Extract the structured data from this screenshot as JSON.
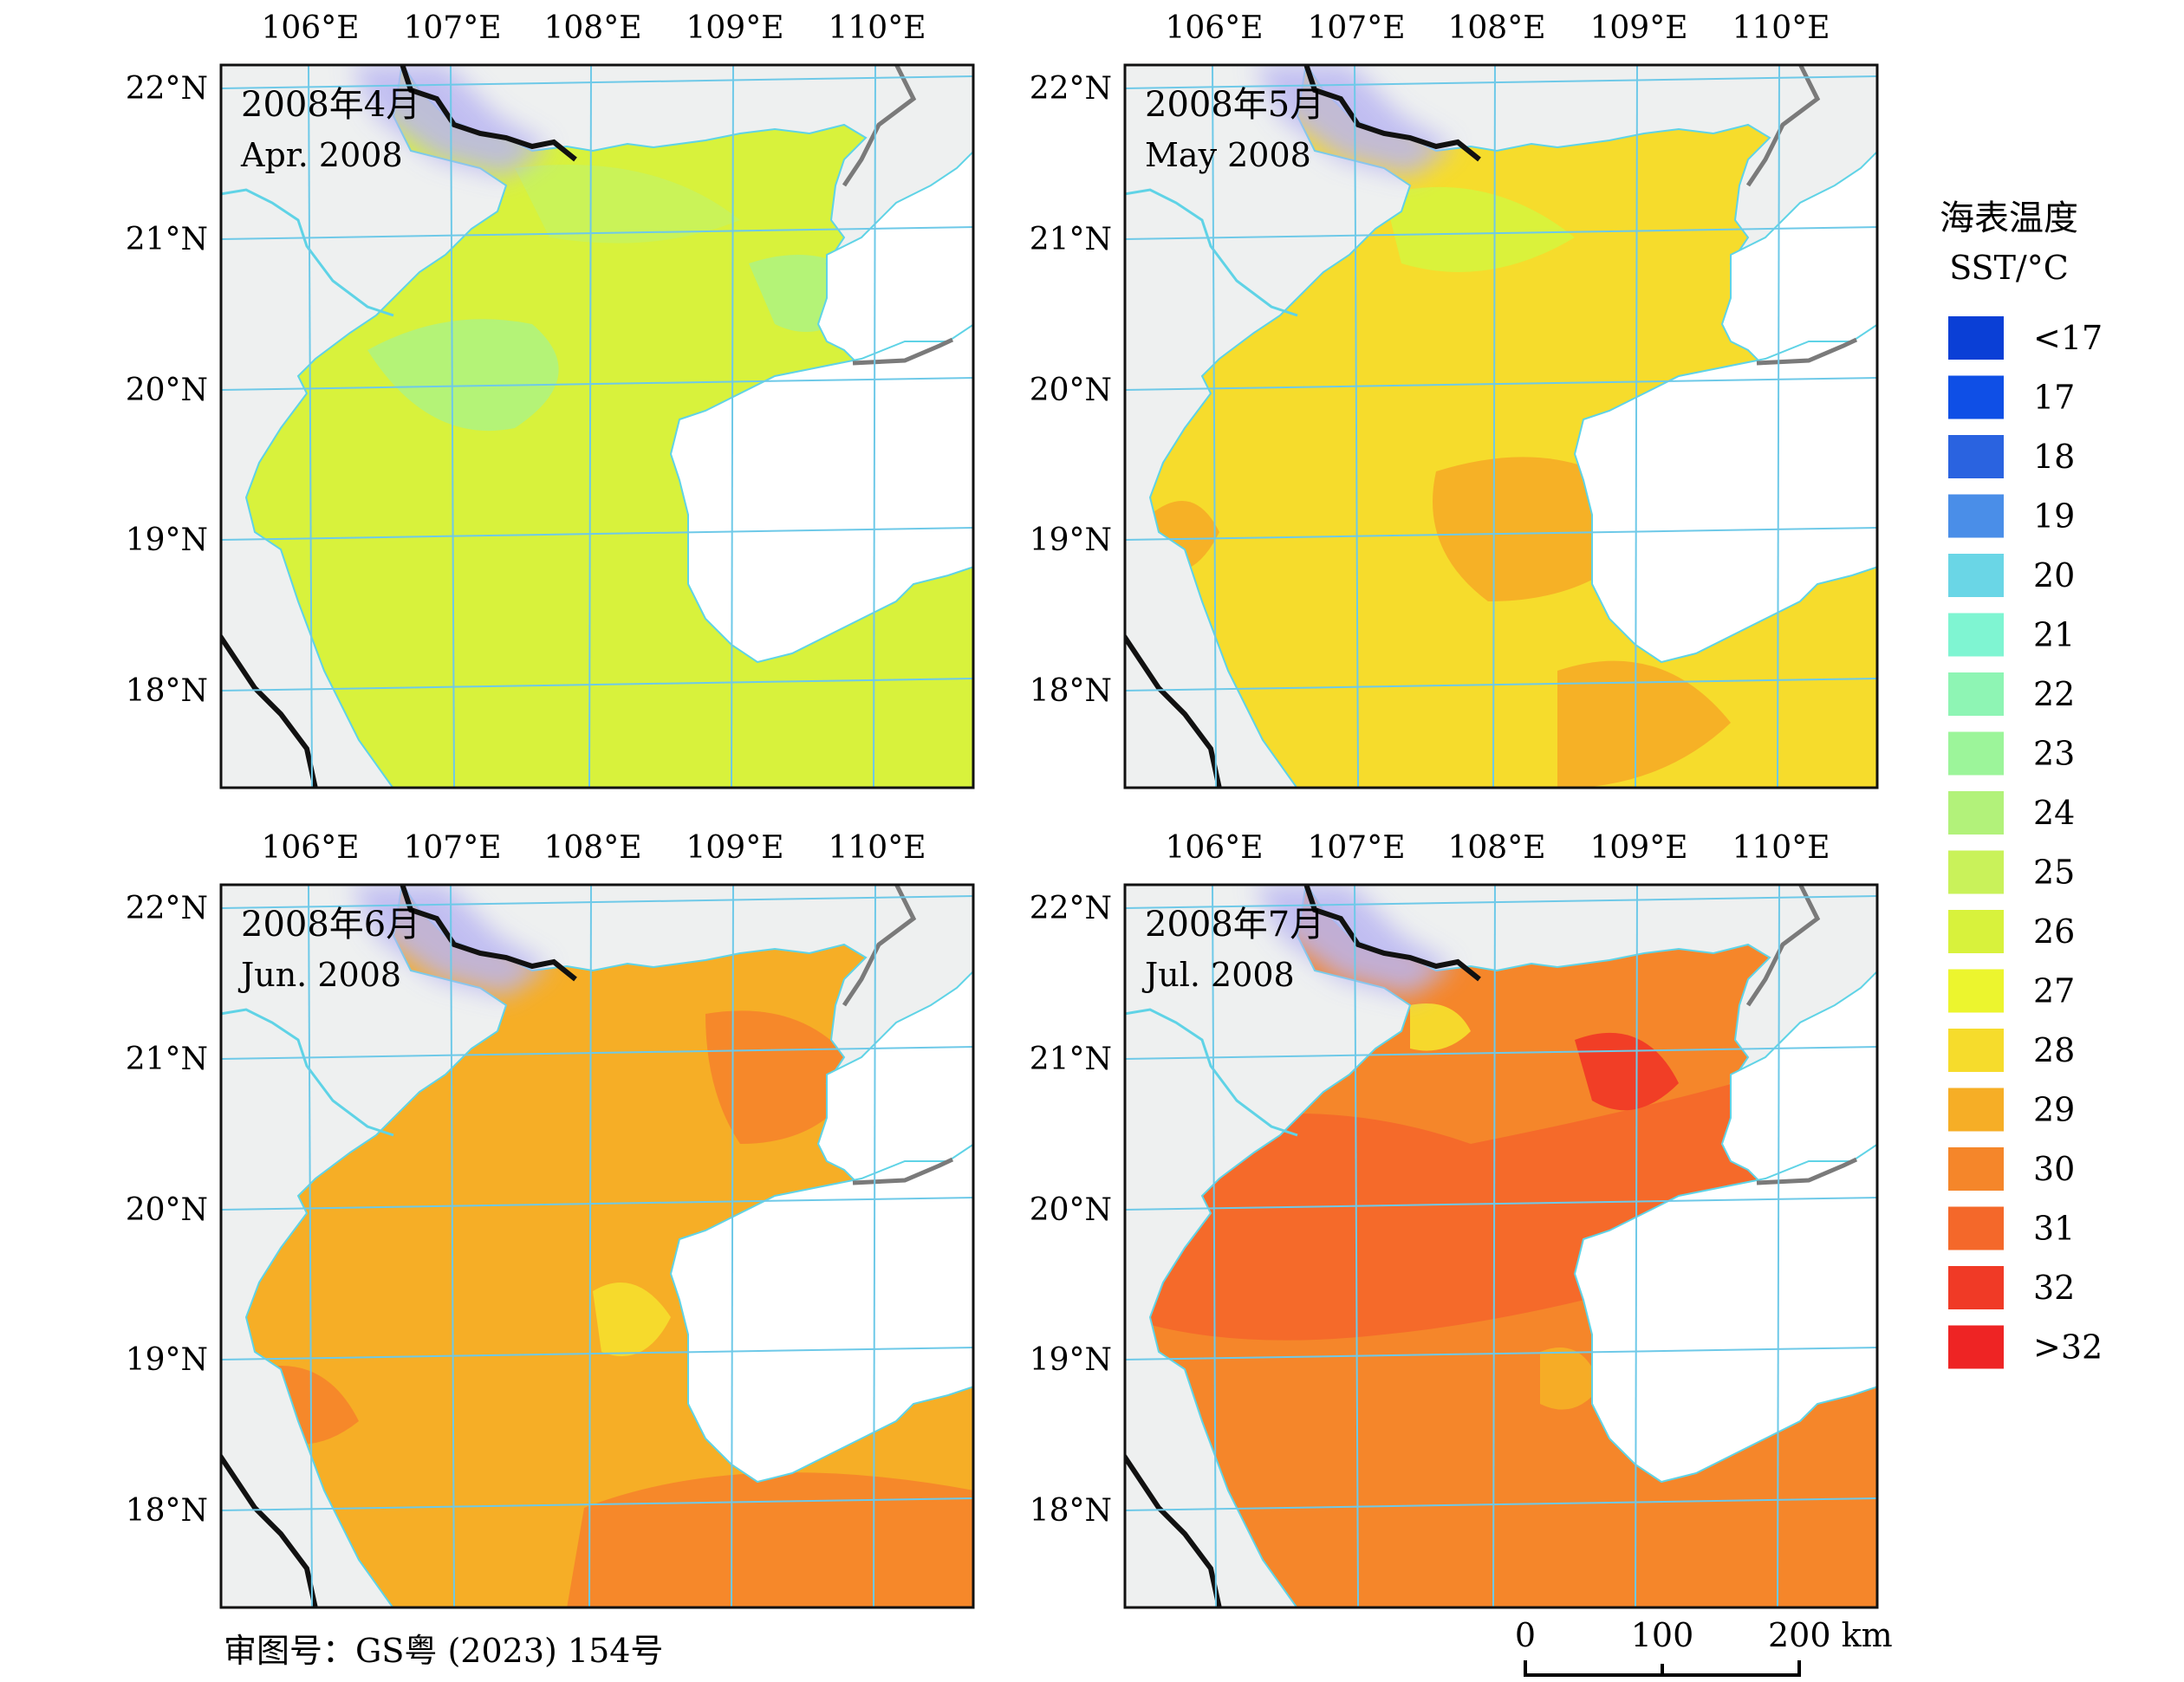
{
  "panels": [
    {
      "id": "apr",
      "label_cn": "2008年4月",
      "label_en": "Apr. 2008"
    },
    {
      "id": "may",
      "label_cn": "2008年5月",
      "label_en": "May 2008"
    },
    {
      "id": "jun",
      "label_cn": "2008年6月",
      "label_en": "Jun. 2008"
    },
    {
      "id": "jul",
      "label_cn": "2008年7月",
      "label_en": "Jul. 2008"
    }
  ],
  "longitude_labels": [
    "106°E",
    "107°E",
    "108°E",
    "109°E",
    "110°E"
  ],
  "latitude_labels": [
    "22°N",
    "21°N",
    "20°N",
    "19°N",
    "18°N"
  ],
  "legend": {
    "title_cn": "海表温度",
    "title_en": "SST/°C",
    "items": [
      {
        "label": "<17",
        "color": "#0a3fd6"
      },
      {
        "label": "17",
        "color": "#0f4fe6"
      },
      {
        "label": "18",
        "color": "#2a63e0"
      },
      {
        "label": "19",
        "color": "#4a8ee8"
      },
      {
        "label": "20",
        "color": "#6ad6e6"
      },
      {
        "label": "21",
        "color": "#7ff5d2"
      },
      {
        "label": "22",
        "color": "#8ef5b4"
      },
      {
        "label": "23",
        "color": "#9cf59a"
      },
      {
        "label": "24",
        "color": "#b2f27a"
      },
      {
        "label": "25",
        "color": "#c9f25a"
      },
      {
        "label": "26",
        "color": "#d8f23c"
      },
      {
        "label": "27",
        "color": "#ecf52e"
      },
      {
        "label": "28",
        "color": "#f6dc2c"
      },
      {
        "label": "29",
        "color": "#f6ae26"
      },
      {
        "label": "30",
        "color": "#f5862a"
      },
      {
        "label": "31",
        "color": "#f4682a"
      },
      {
        "label": "32",
        "color": "#f03a26"
      },
      {
        "label": ">32",
        "color": "#ee2424"
      }
    ]
  },
  "panel_base_colors": {
    "apr": "#d8f23c",
    "may": "#f6dc2c",
    "jun": "#f6ae26",
    "jul": "#f5862a"
  },
  "scale_bar": {
    "ticks": [
      "0",
      "100",
      "200 km"
    ]
  },
  "approval_number": "审图号：GS粤 (2023) 154号"
}
